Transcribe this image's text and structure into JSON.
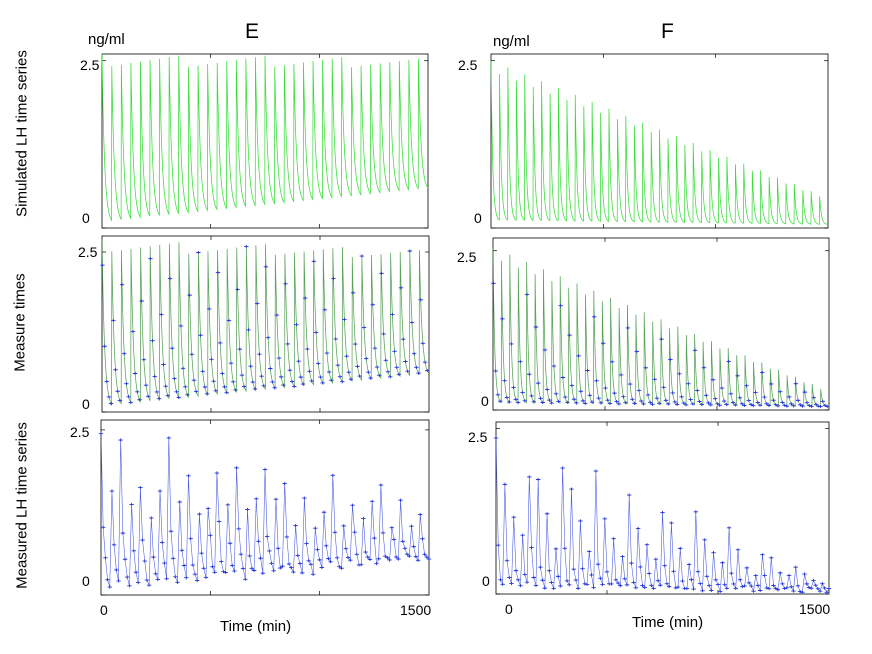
{
  "figure": {
    "unit_label": "ng/ml",
    "col_letters": [
      "E",
      "F"
    ],
    "row_labels": [
      "Simulated LH time series",
      "Measure times",
      "Measured LH time series"
    ],
    "x_axis_label": "Time (min)",
    "colors": {
      "simulated": "#37dc37",
      "simulated_dark": "#2e8b2e",
      "measured": "#2438d8",
      "axis": "#000000"
    }
  },
  "chart_data": [
    {
      "id": "E-simulated",
      "type": "line",
      "column": "E",
      "row": "Simulated LH time series",
      "xlim": [
        0,
        1500
      ],
      "ylim": [
        0,
        2.6
      ],
      "yticks": [
        0,
        2.5
      ],
      "ytick_labels": [
        "0",
        "2.5"
      ],
      "series": [
        {
          "name": "simulated LH",
          "pulses": 34,
          "peak_start": 2.6,
          "peak_end": 2.55,
          "trough_start": 0.05,
          "trough_end": 0.55,
          "decay_min": 12
        }
      ]
    },
    {
      "id": "F-simulated",
      "type": "line",
      "column": "F",
      "row": "Simulated LH time series",
      "xlim": [
        0,
        1500
      ],
      "ylim": [
        0,
        2.6
      ],
      "yticks": [
        0,
        2.5
      ],
      "ytick_labels": [
        "0",
        "2.5"
      ],
      "series": [
        {
          "name": "simulated LH",
          "pulses": 40,
          "peak_start": 2.5,
          "peak_end": 0.5,
          "trough_start": 0.1,
          "trough_end": 0.05,
          "decay_min": 9
        }
      ]
    },
    {
      "id": "E-measure",
      "type": "line",
      "column": "E",
      "row": "Measure times",
      "xlim": [
        0,
        1500
      ],
      "ylim": [
        0,
        2.75
      ],
      "yticks": [
        0,
        2.5
      ],
      "ytick_labels": [
        "0",
        "2.5"
      ],
      "series": [
        {
          "name": "simulated LH",
          "pulses": 34,
          "peak_start": 2.7,
          "peak_end": 2.55,
          "trough_start": 0.05,
          "trough_end": 0.55,
          "decay_min": 12
        }
      ],
      "samples": {
        "interval_min": 10
      }
    },
    {
      "id": "F-measure",
      "type": "line",
      "column": "F",
      "row": "Measure times",
      "xlim": [
        0,
        1500
      ],
      "ylim": [
        0,
        2.7
      ],
      "yticks": [
        0,
        2.5
      ],
      "ytick_labels": [
        "0",
        "2.5"
      ],
      "series": [
        {
          "name": "simulated LH",
          "pulses": 40,
          "peak_start": 2.55,
          "peak_end": 0.35,
          "trough_start": 0.1,
          "trough_end": 0.05,
          "decay_min": 9
        }
      ],
      "samples": {
        "interval_min": 10
      }
    },
    {
      "id": "E-measured",
      "type": "line",
      "column": "E",
      "row": "Measured LH time series",
      "xlim": [
        0,
        1500
      ],
      "ylim": [
        0,
        2.65
      ],
      "yticks": [
        0,
        2.5
      ],
      "xticks": [
        0,
        1500
      ],
      "ytick_labels": [
        "0",
        "2.5"
      ],
      "xtick_labels": [
        "0",
        "1500"
      ],
      "series": [
        {
          "name": "measured LH",
          "pulses": 34,
          "peak_start": 2.55,
          "peak_end": 1.5,
          "trough_start": 0.05,
          "trough_end": 0.5,
          "decay_min": 12,
          "sample_interval_min": 10
        }
      ]
    },
    {
      "id": "F-measured",
      "type": "line",
      "column": "F",
      "row": "Measured LH time series",
      "xlim": [
        0,
        1500
      ],
      "ylim": [
        0,
        2.6
      ],
      "yticks": [
        0,
        2.5
      ],
      "xticks": [
        0,
        1500
      ],
      "ytick_labels": [
        "0",
        "2.5"
      ],
      "xtick_labels": [
        "0",
        "1500"
      ],
      "series": [
        {
          "name": "measured LH",
          "pulses": 40,
          "peak_start": 2.3,
          "peak_end": 0.35,
          "trough_start": 0.1,
          "trough_end": 0.05,
          "decay_min": 9,
          "sample_interval_min": 10
        }
      ]
    }
  ]
}
